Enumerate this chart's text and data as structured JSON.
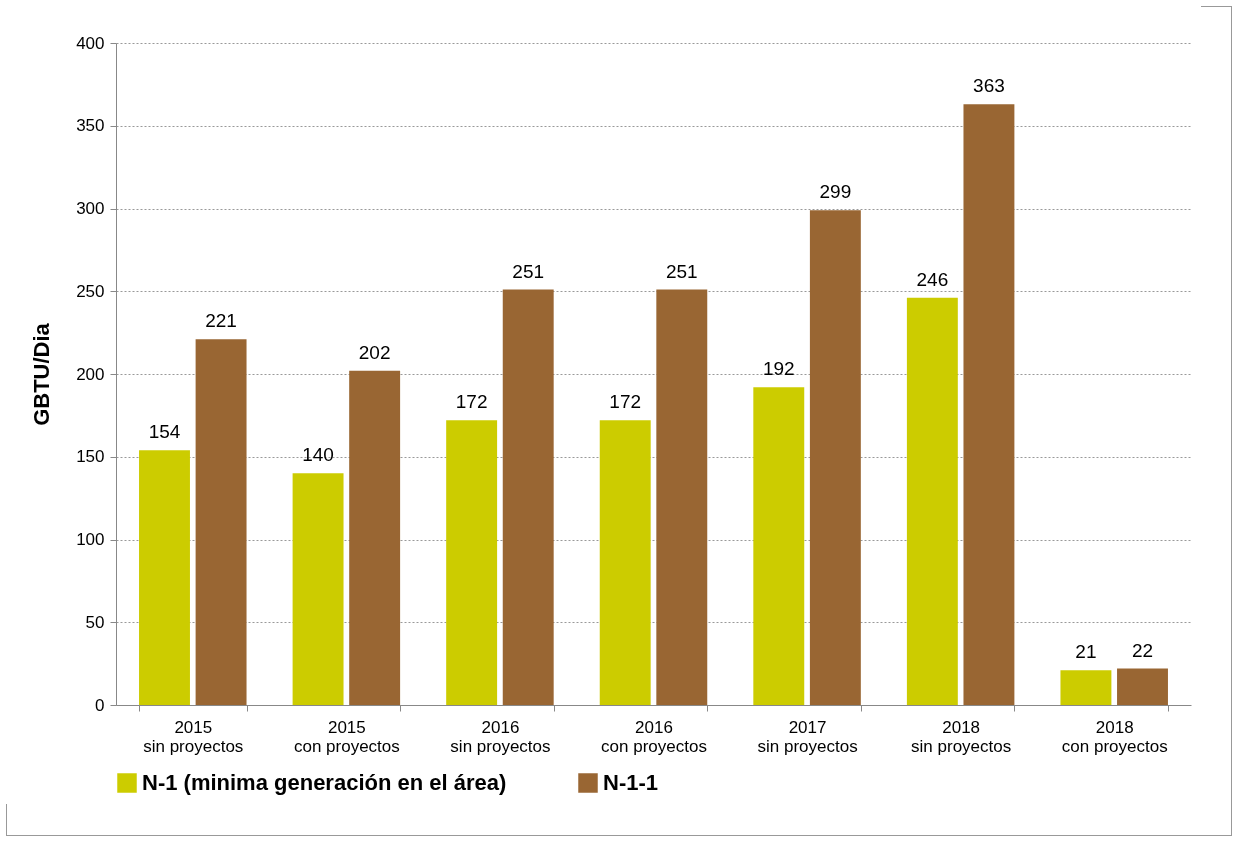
{
  "chart_data": {
    "type": "bar",
    "ylabel": "GBTU/Dia",
    "categories": [
      "2015 sin proyectos",
      "2015 con proyectos",
      "2016 sin proyectos",
      "2016 con proyectos",
      "2017 sin proyectos",
      "2018 sin proyectos",
      "2018 con proyectos"
    ],
    "series": [
      {
        "name": "N-1 (minima generación en el área)",
        "color": "#cccc00",
        "values": [
          154,
          140,
          172,
          172,
          192,
          246,
          21
        ]
      },
      {
        "name": "N-1-1",
        "color": "#996633",
        "values": [
          221,
          202,
          251,
          251,
          299,
          363,
          22
        ]
      }
    ],
    "ylim": [
      0,
      400
    ],
    "yticks": [
      0,
      50,
      100,
      150,
      200,
      250,
      300,
      350,
      400
    ],
    "grid": "y",
    "legend": "bottom",
    "data_labels": true
  }
}
